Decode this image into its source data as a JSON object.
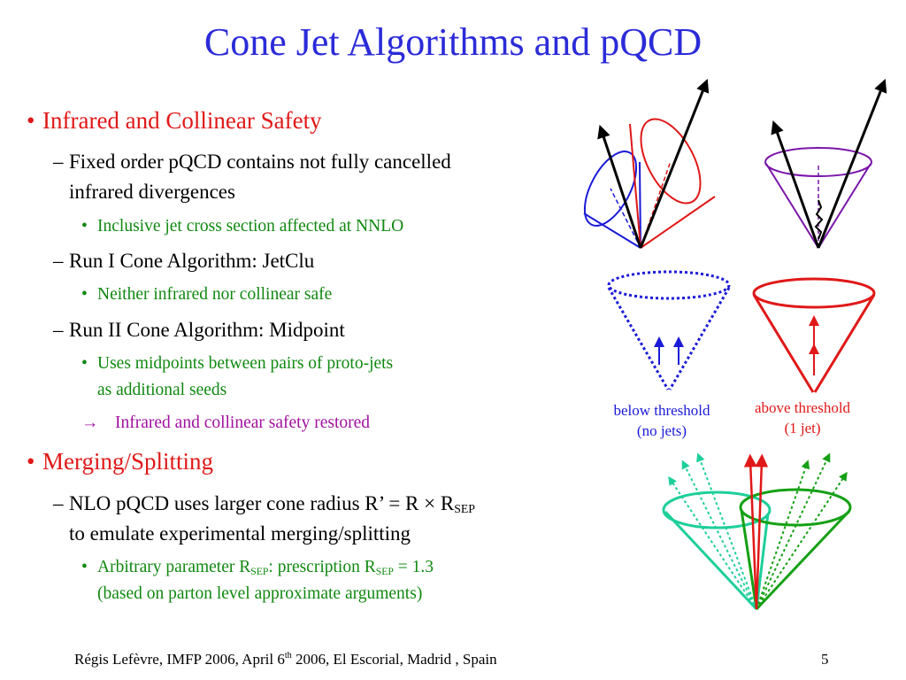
{
  "title": "Cone Jet Algorithms and pQCD",
  "bullets": {
    "ir_safety": "Infrared and Collinear Safety",
    "fixed_order_1": "Fixed order pQCD contains not fully cancelled",
    "fixed_order_2": "infrared divergences",
    "inclusive": "Inclusive jet cross section affected at NNLO",
    "run1": "Run I Cone Algorithm: JetClu",
    "neither": "Neither infrared nor collinear safe",
    "run2": "Run II Cone Algorithm: Midpoint",
    "midpoints_1": "Uses midpoints between pairs of proto-jets",
    "midpoints_2": "as additional seeds",
    "arrow_symbol": "→",
    "restored": "Infrared and collinear safety restored",
    "merging": "Merging/Splitting",
    "nlo_1a": "NLO pQCD uses larger cone radius  R’ = R × R",
    "nlo_1sub": "SEP",
    "nlo_2": "to emulate experimental merging/splitting",
    "arb_a": "Arbitrary parameter R",
    "arb_sub1": "SEP",
    "arb_b": ": prescription  R",
    "arb_sub2": "SEP",
    "arb_c": " = 1.3",
    "arb_2": "(based on parton level approximate arguments)"
  },
  "captions": {
    "below_1": "below threshold",
    "below_2": "(no jets)",
    "above_1": "above threshold",
    "above_2": "(1 jet)"
  },
  "footer": {
    "text_a": "Régis Lefèvre, IMFP 2006, April 6",
    "sup": "th",
    "text_b": " 2006, El Escorial, Madrid , Spain",
    "page": "5"
  },
  "colors": {
    "title": "#2b2bd9",
    "level1": "#e01818",
    "level3": "#118811",
    "arrow_item": "#a010a0",
    "blue_cone": "#1a1ad8",
    "red_cone": "#e01818",
    "purple_cone": "#7a16a8",
    "teal_cone": "#1ecf9a",
    "green_cone": "#15a015"
  }
}
